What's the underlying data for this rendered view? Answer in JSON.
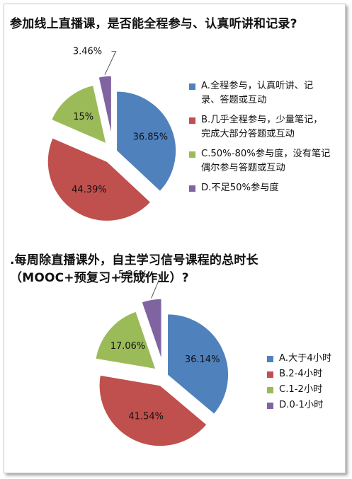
{
  "chart_data": [
    {
      "type": "pie",
      "title": "参加线上直播课，是否能全程参与、认真听讲和记录?",
      "slices": [
        {
          "label": "A.全程参与，认真听讲、记录、答题或互动",
          "legend_lines": [
            "A.全程参与，认真听讲、记",
            "录、答题或互动"
          ],
          "value": 36.85,
          "value_label": "36.85%",
          "color": "#4f81bd"
        },
        {
          "label": "B.几乎全程参与，少量笔记，完成大部分答题或互动",
          "legend_lines": [
            "B.几乎全程参与，少量笔记，",
            "完成大部分答题或互动"
          ],
          "value": 44.39,
          "value_label": "44.39%",
          "color": "#c0504d"
        },
        {
          "label": "C.50%-80%参与度，没有笔记偶尔参与答题或互动",
          "legend_lines": [
            "C.50%-80%参与度，没有笔记",
            "偶尔参与答题或互动"
          ],
          "value": 15,
          "value_label": "15%",
          "color": "#9bbb59"
        },
        {
          "label": "D.不足50%参与度",
          "legend_lines": [
            "D.不足50%参与度"
          ],
          "value": 3.46,
          "value_label": "3.46%",
          "color": "#8064a2"
        }
      ]
    },
    {
      "type": "pie",
      "title": ".每周除直播课外，自主学习信号课程的总时长（MOOC+预复习+完成作业）?",
      "title_lines": [
        ".每周除直播课外，自主学习信号课程的总时长",
        "（MOOC+预复习+完成作业）?"
      ],
      "slices": [
        {
          "label": "A.大于4小时",
          "legend_lines": [
            "A.大于4小时"
          ],
          "value": 36.14,
          "value_label": "36.14%",
          "color": "#4f81bd"
        },
        {
          "label": "B.2-4小时",
          "legend_lines": [
            "B.2-4小时"
          ],
          "value": 41.54,
          "value_label": "41.54%",
          "color": "#c0504d"
        },
        {
          "label": "C.1-2小时",
          "legend_lines": [
            "C.1-2小时"
          ],
          "value": 17.06,
          "value_label": "17.06%",
          "color": "#9bbb59"
        },
        {
          "label": "D.0-1小时",
          "legend_lines": [
            "D.0-1小时"
          ],
          "value": 5.26,
          "value_label": "5.26%",
          "color": "#8064a2"
        }
      ]
    }
  ]
}
